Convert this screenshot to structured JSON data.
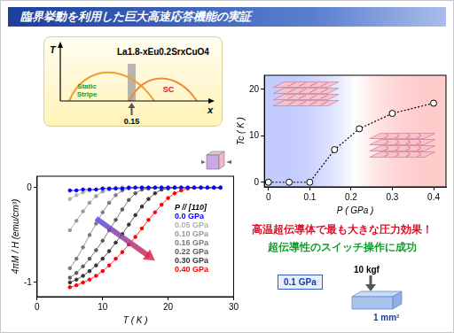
{
  "header": {
    "title": "臨界挙動を利用した巨大高速応答機能の実証"
  },
  "phase_diagram": {
    "formula": "La1.8-xEu0.2SrxCuO4",
    "y_label": "T",
    "x_label": "x",
    "stripe_label": "Static Stripe",
    "sc_label": "SC",
    "doping": 0.15
  },
  "chart_data": [
    {
      "type": "line",
      "x_label": "T ( K )",
      "y_label": "4πM / H (emu/cm³)",
      "x": [
        5,
        6,
        7,
        8,
        9,
        10,
        11,
        12,
        13,
        14,
        15,
        16,
        17,
        18,
        19,
        20,
        21,
        22,
        23,
        24,
        25,
        26,
        27,
        28
      ],
      "series": [
        {
          "name": "0.0 GPa",
          "color": "#0000ff",
          "values": [
            -0.03,
            -0.03,
            -0.02,
            -0.02,
            -0.02,
            -0.01,
            -0.01,
            -0.01,
            -0.01,
            0,
            0,
            0,
            0,
            0,
            0,
            0,
            0,
            0,
            0,
            0,
            0,
            0,
            0,
            0
          ]
        },
        {
          "name": "0.05 GPa",
          "color": "#b0b0b0",
          "values": [
            -0.12,
            -0.08,
            -0.05,
            -0.03,
            -0.02,
            -0.01,
            -0.01,
            0,
            0,
            0,
            0,
            0,
            0,
            0,
            0,
            0,
            0,
            0,
            0,
            0,
            0,
            0,
            0,
            0
          ]
        },
        {
          "name": "0.10 GPa",
          "color": "#989898",
          "values": [
            -0.45,
            -0.35,
            -0.25,
            -0.16,
            -0.09,
            -0.04,
            -0.02,
            -0.01,
            0,
            0,
            0,
            0,
            0,
            0,
            0,
            0,
            0,
            0,
            0,
            0,
            0,
            0,
            0,
            0
          ]
        },
        {
          "name": "0.16 GPa",
          "color": "#7a7a7a",
          "values": [
            -0.85,
            -0.75,
            -0.63,
            -0.5,
            -0.38,
            -0.26,
            -0.16,
            -0.08,
            -0.03,
            -0.01,
            0,
            0,
            0,
            0,
            0,
            0,
            0,
            0,
            0,
            0,
            0,
            0,
            0,
            0
          ]
        },
        {
          "name": "0.22 GPa",
          "color": "#5a5a5a",
          "values": [
            -0.95,
            -0.9,
            -0.83,
            -0.75,
            -0.66,
            -0.56,
            -0.45,
            -0.34,
            -0.23,
            -0.13,
            -0.06,
            -0.02,
            -0.01,
            0,
            0,
            0,
            0,
            0,
            0,
            0,
            0,
            0,
            0,
            0
          ]
        },
        {
          "name": "0.30 GPa",
          "color": "#333333",
          "values": [
            -1,
            -0.97,
            -0.93,
            -0.88,
            -0.82,
            -0.75,
            -0.67,
            -0.58,
            -0.49,
            -0.39,
            -0.29,
            -0.2,
            -0.12,
            -0.06,
            -0.02,
            -0.01,
            0,
            0,
            0,
            0,
            0,
            0,
            0,
            0
          ]
        },
        {
          "name": "0.40 GPa",
          "color": "#ff0000",
          "values": [
            -1.05,
            -1.03,
            -1,
            -0.97,
            -0.93,
            -0.88,
            -0.82,
            -0.75,
            -0.68,
            -0.6,
            -0.52,
            -0.43,
            -0.34,
            -0.26,
            -0.18,
            -0.11,
            -0.06,
            -0.03,
            -0.01,
            0,
            0,
            0,
            0,
            0
          ]
        }
      ],
      "legend_title": "P // [110]",
      "legend": "right",
      "xlim": [
        0,
        30
      ],
      "xticks": [
        0,
        10,
        20,
        30
      ],
      "ylim": [
        -1.15,
        0.12
      ],
      "yticks": [
        -1,
        0
      ],
      "grid": false,
      "marker": "circle",
      "line_style": "solid"
    },
    {
      "type": "line",
      "x_label": "P ( GPa )",
      "y_label": "Tc ( K )",
      "x": [
        0,
        0.05,
        0.1,
        0.16,
        0.22,
        0.3,
        0.4
      ],
      "series": [
        {
          "name": "Tc",
          "color": "#000000",
          "values": [
            0,
            0,
            0,
            7,
            11.5,
            14.8,
            17
          ]
        }
      ],
      "xlim": [
        -0.01,
        0.43
      ],
      "xticks": [
        0,
        0.1,
        0.2,
        0.3,
        0.4
      ],
      "ylim": [
        -1,
        23
      ],
      "yticks": [
        0,
        10,
        20
      ],
      "grid": false,
      "marker": "open",
      "line_style": "dotted"
    }
  ],
  "notes": {
    "headline": "高温超伝導体で最も大きな圧力効果！",
    "subline": "超伝導性のスイッチ操作に成功",
    "pressure": "0.1 GPa",
    "force": "10 kgf",
    "area": "1 mm²"
  }
}
